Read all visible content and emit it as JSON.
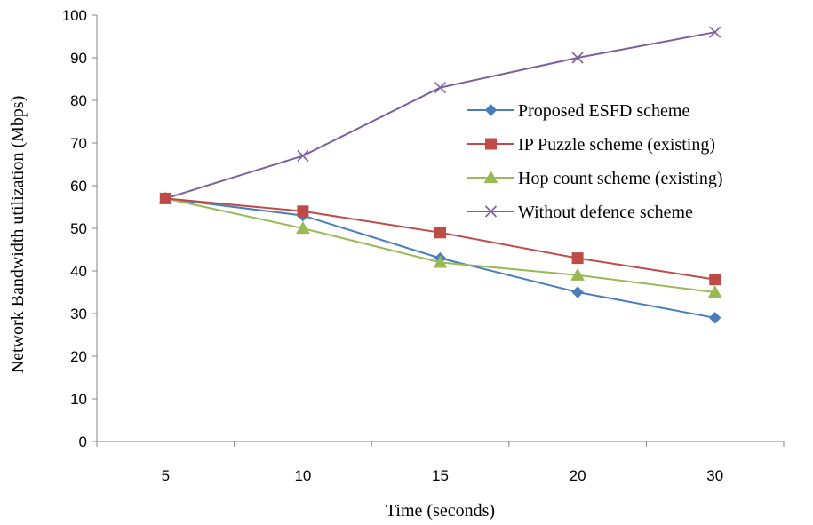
{
  "chart_data": {
    "type": "line",
    "title": "",
    "xlabel": "Time (seconds)",
    "ylabel": "Network Bandwidth utilization (Mbps)",
    "categories": [
      "5",
      "10",
      "15",
      "20",
      "30"
    ],
    "ylim": [
      0,
      100
    ],
    "yticks": [
      0,
      10,
      20,
      30,
      40,
      50,
      60,
      70,
      80,
      90,
      100
    ],
    "grid": false,
    "legend_position": "right",
    "series": [
      {
        "name": "Proposed ESFD scheme",
        "values": [
          57,
          53,
          43,
          35,
          29
        ],
        "color": "#4A7EBB",
        "marker": "diamond"
      },
      {
        "name": "IP Puzzle scheme (existing)",
        "values": [
          57,
          54,
          49,
          43,
          38
        ],
        "color": "#BE4B48",
        "marker": "square"
      },
      {
        "name": "Hop count scheme (existing)",
        "values": [
          57,
          50,
          42,
          39,
          35
        ],
        "color": "#98B954",
        "marker": "triangle"
      },
      {
        "name": "Without defence scheme",
        "values": [
          57,
          67,
          83,
          90,
          96
        ],
        "color": "#7D60A0",
        "marker": "x"
      }
    ]
  }
}
